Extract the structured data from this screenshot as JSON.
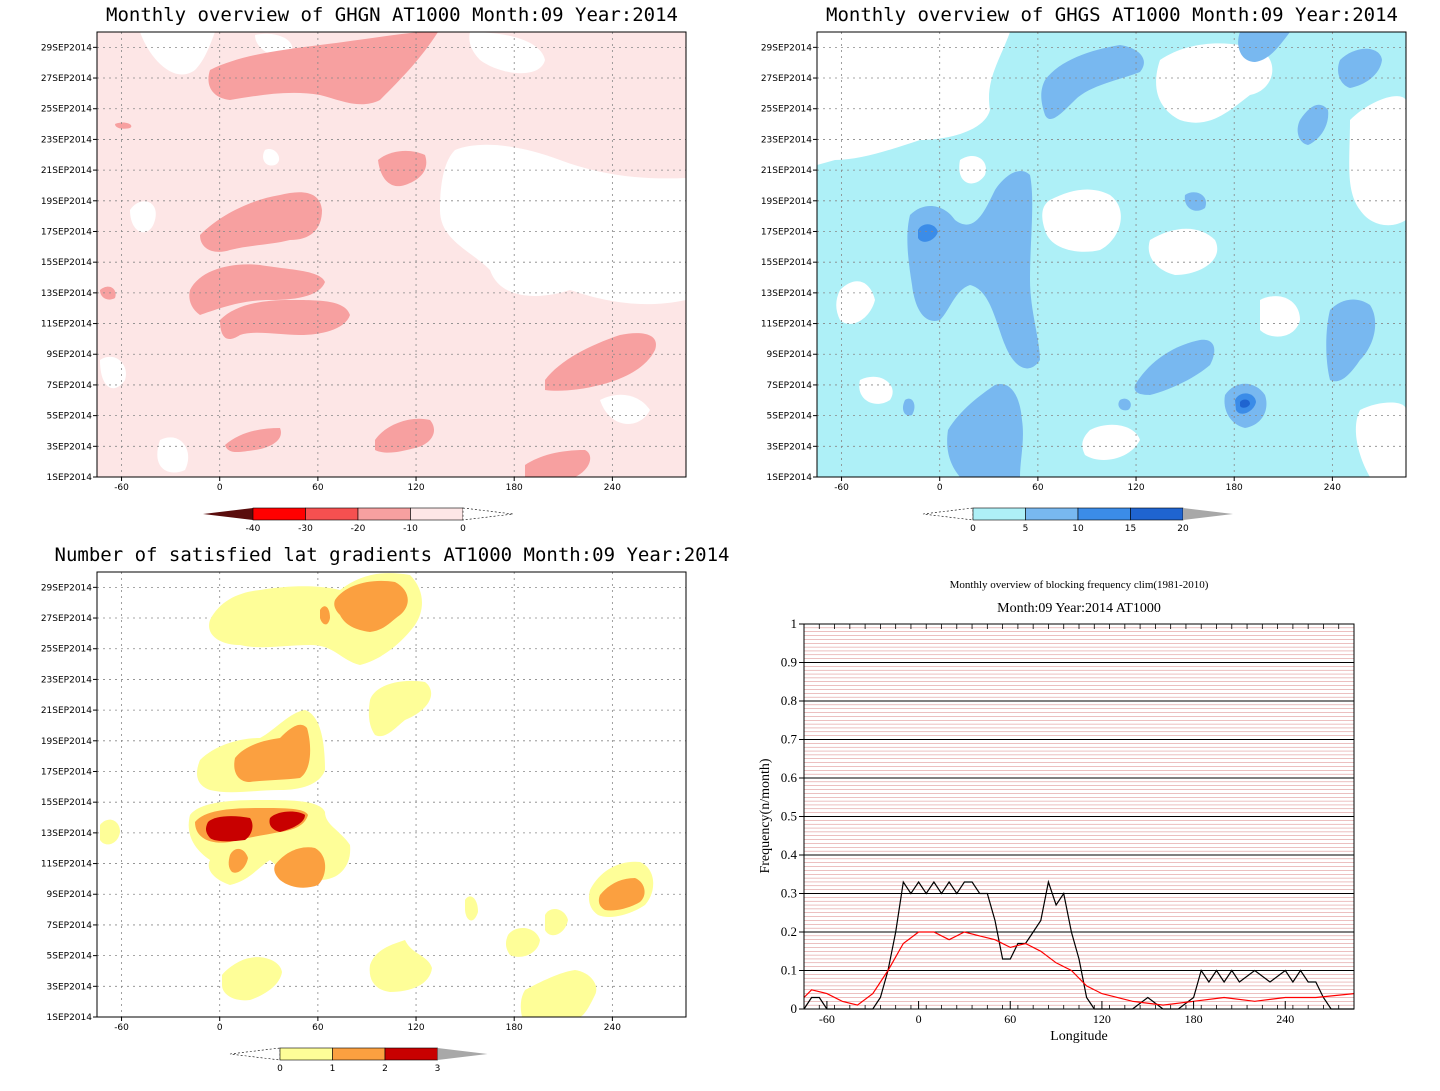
{
  "panels": {
    "ghgn": {
      "title": "Monthly overview of GHGN AT1000 Month:09 Year:2014",
      "colorbar_labels": [
        "-40",
        "-30",
        "-20",
        "-10",
        "0"
      ],
      "colors": [
        "#5a0d0d",
        "#ff0000",
        "#f65050",
        "#f7a0a0",
        "#fde6e6"
      ]
    },
    "ghgs": {
      "title": "Monthly overview of GHGS AT1000 Month:09 Year:2014",
      "colorbar_labels": [
        "0",
        "5",
        "10",
        "15",
        "20"
      ],
      "colors": [
        "#aef0f7",
        "#78b8f0",
        "#3b8ce8",
        "#1f64d0",
        "#a8a8a8"
      ]
    },
    "lat": {
      "title": "Number of satisfied lat gradients AT1000 Month:09 Year:2014",
      "colorbar_labels": [
        "0",
        "1",
        "2",
        "3"
      ],
      "colors": [
        "#fefe98",
        "#fba040",
        "#c80000",
        "#a8a8a8"
      ]
    }
  },
  "map_axes": {
    "x_ticks": [
      "-60",
      "0",
      "60",
      "120",
      "180",
      "240"
    ],
    "y_ticks": [
      "1SEP2014",
      "3SEP2014",
      "5SEP2014",
      "7SEP2014",
      "9SEP2014",
      "11SEP2014",
      "13SEP2014",
      "15SEP2014",
      "17SEP2014",
      "19SEP2014",
      "21SEP2014",
      "23SEP2014",
      "25SEP2014",
      "27SEP2014",
      "29SEP2014"
    ]
  },
  "blocking": {
    "title": "Monthly overview of blocking frequency clim(1981-2010)",
    "subtitle": "Month:09 Year:2014  AT1000",
    "xlabel": "Longitude",
    "ylabel": "Frequency(n/month)",
    "x_ticks": [
      "-60",
      "0",
      "60",
      "120",
      "180",
      "240"
    ],
    "y_ticks": [
      "0",
      "0.1",
      "0.2",
      "0.3",
      "0.4",
      "0.5",
      "0.6",
      "0.7",
      "0.8",
      "0.9",
      "1"
    ]
  },
  "chart_data": [
    {
      "type": "heatmap",
      "title": "Monthly overview of GHGN AT1000 Month:09 Year:2014",
      "x_range": [
        -75,
        285
      ],
      "y_range": [
        "1SEP2014",
        "30SEP2014"
      ],
      "colorbar": [
        -40,
        -30,
        -20,
        -10,
        0
      ]
    },
    {
      "type": "heatmap",
      "title": "Monthly overview of GHGS AT1000 Month:09 Year:2014",
      "x_range": [
        -75,
        285
      ],
      "y_range": [
        "1SEP2014",
        "30SEP2014"
      ],
      "colorbar": [
        0,
        5,
        10,
        15,
        20
      ]
    },
    {
      "type": "heatmap",
      "title": "Number of satisfied lat gradients AT1000 Month:09 Year:2014",
      "x_range": [
        -75,
        285
      ],
      "y_range": [
        "1SEP2014",
        "30SEP2014"
      ],
      "colorbar": [
        0,
        1,
        2,
        3
      ]
    },
    {
      "type": "line",
      "title": "Monthly overview of blocking frequency clim(1981-2010)",
      "subtitle": "Month:09 Year:2014  AT1000",
      "xlabel": "Longitude",
      "ylabel": "Frequency(n/month)",
      "xlim": [
        -75,
        285
      ],
      "ylim": [
        0,
        1
      ],
      "grid": true,
      "series": [
        {
          "color": "#000000",
          "x": [
            -75,
            -70,
            -65,
            -60,
            -50,
            -30,
            -25,
            -20,
            -15,
            -10,
            -5,
            0,
            5,
            10,
            15,
            20,
            25,
            30,
            35,
            40,
            45,
            50,
            55,
            60,
            65,
            70,
            75,
            80,
            85,
            90,
            95,
            100,
            105,
            110,
            115,
            120,
            130,
            140,
            150,
            160,
            170,
            180,
            185,
            190,
            195,
            200,
            205,
            210,
            220,
            230,
            240,
            245,
            250,
            255,
            260,
            265,
            270,
            285
          ],
          "values": [
            0,
            0.03,
            0.03,
            0,
            0,
            0,
            0.03,
            0.1,
            0.2,
            0.33,
            0.3,
            0.33,
            0.3,
            0.33,
            0.3,
            0.33,
            0.3,
            0.33,
            0.33,
            0.3,
            0.3,
            0.23,
            0.13,
            0.13,
            0.17,
            0.17,
            0.2,
            0.23,
            0.33,
            0.27,
            0.3,
            0.2,
            0.13,
            0.03,
            0,
            0,
            0,
            0,
            0.03,
            0,
            0,
            0.03,
            0.1,
            0.07,
            0.1,
            0.07,
            0.1,
            0.07,
            0.1,
            0.07,
            0.1,
            0.07,
            0.1,
            0.07,
            0.07,
            0.03,
            0,
            0
          ]
        },
        {
          "color": "#ff0000",
          "x": [
            -75,
            -70,
            -60,
            -50,
            -40,
            -30,
            -20,
            -10,
            0,
            10,
            20,
            30,
            40,
            50,
            60,
            70,
            80,
            90,
            100,
            110,
            120,
            140,
            160,
            180,
            200,
            220,
            240,
            260,
            285
          ],
          "values": [
            0.03,
            0.05,
            0.04,
            0.02,
            0.01,
            0.04,
            0.1,
            0.17,
            0.2,
            0.2,
            0.18,
            0.2,
            0.19,
            0.18,
            0.16,
            0.17,
            0.15,
            0.12,
            0.1,
            0.06,
            0.04,
            0.02,
            0.01,
            0.02,
            0.03,
            0.02,
            0.03,
            0.03,
            0.04
          ]
        }
      ]
    }
  ]
}
